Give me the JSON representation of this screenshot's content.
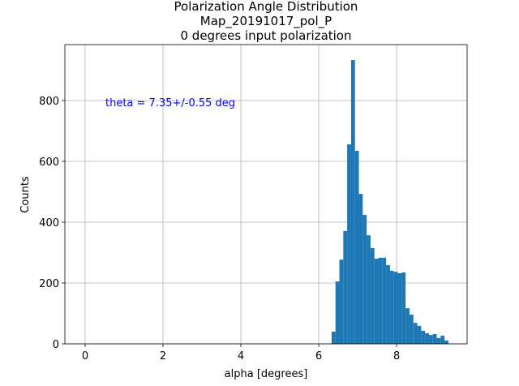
{
  "chart_data": {
    "type": "histogram",
    "title": [
      "Polarization Angle Distribution",
      "Map_20191017_pol_P",
      "0 degrees input polarization"
    ],
    "x_label": "alpha [degrees]",
    "y_label": "Counts",
    "annotation": "theta = 7.35+/-0.55 deg",
    "annotation_color": "#0000ff",
    "bins": [
      6.33,
      6.43,
      6.53,
      6.63,
      6.73,
      6.83,
      6.93,
      7.03,
      7.13,
      7.23,
      7.33,
      7.43,
      7.53,
      7.63,
      7.73,
      7.83,
      7.93,
      8.03,
      8.13,
      8.23,
      8.33,
      8.43,
      8.53,
      8.63,
      8.73,
      8.83,
      8.93,
      9.03,
      9.13,
      9.23,
      9.33
    ],
    "counts": [
      40,
      205,
      277,
      371,
      656,
      933,
      635,
      493,
      424,
      357,
      315,
      280,
      283,
      283,
      259,
      240,
      237,
      232,
      235,
      117,
      96,
      69,
      59,
      43,
      35,
      29,
      32,
      19,
      27,
      11
    ],
    "color": "#1f77b4",
    "xlim": [
      -0.52,
      9.81
    ],
    "ylim": [
      0,
      984
    ],
    "xticks": [
      0,
      2,
      4,
      6,
      8
    ],
    "yticks": [
      0,
      200,
      400,
      600,
      800
    ],
    "grid": true
  }
}
